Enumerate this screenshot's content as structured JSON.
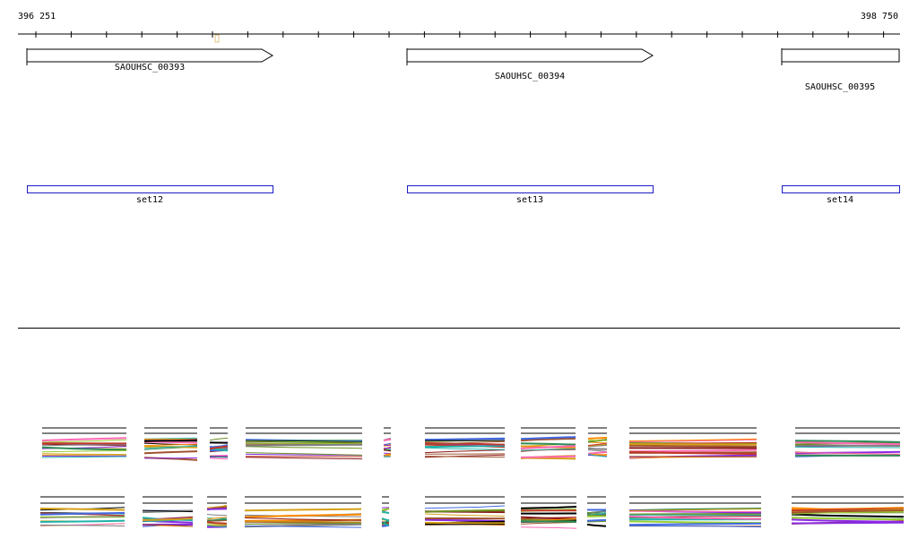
{
  "ruler": {
    "start_label": "396 251",
    "end_label": "398 750"
  },
  "genes": [
    {
      "name": "SAOUHSC_00393",
      "direction": "forward"
    },
    {
      "name": "SAOUHSC_00394",
      "direction": "forward"
    },
    {
      "name": "SAOUHSC_00395",
      "direction": "forward"
    }
  ],
  "sets": [
    {
      "name": "set12"
    },
    {
      "name": "set13"
    },
    {
      "name": "set14"
    }
  ],
  "colors": {
    "set_border": "#1c1cc8",
    "gene_border": "#000000",
    "track_palette": [
      "#000000",
      "#8b1a1a",
      "#c0392b",
      "#d4a017",
      "#6b8e23",
      "#2e8b57",
      "#20b2aa",
      "#4169e1",
      "#8a2be2",
      "#ff69b4",
      "#a0522d",
      "#ff8c00",
      "#808080",
      "#9acd32"
    ]
  }
}
